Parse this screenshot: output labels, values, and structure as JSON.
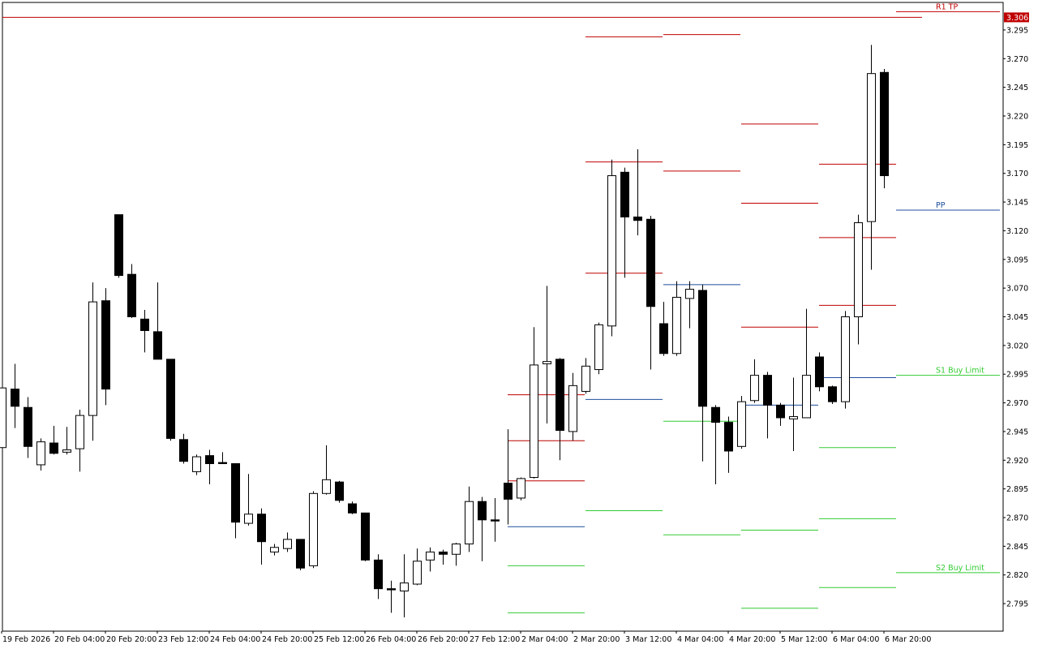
{
  "chart_data": {
    "type": "candlestick",
    "categories": [
      "19 Feb 2026",
      null,
      null,
      null,
      "20 Feb 04:00",
      null,
      null,
      null,
      "20 Feb 20:00",
      null,
      null,
      null,
      "23 Feb 12:00",
      null,
      null,
      null,
      "24 Feb 04:00",
      null,
      null,
      null,
      "24 Feb 20:00",
      null,
      null,
      null,
      "25 Feb 12:00",
      null,
      null,
      null,
      "26 Feb 04:00",
      null,
      null,
      null,
      "26 Feb 20:00",
      null,
      null,
      null,
      "27 Feb 12:00",
      null,
      null,
      null,
      "2 Mar 04:00",
      null,
      null,
      null,
      "2 Mar 20:00",
      null,
      null,
      null,
      "3 Mar 12:00",
      null,
      null,
      null,
      "4 Mar 04:00",
      null,
      null,
      null,
      "4 Mar 20:00",
      null,
      null,
      null,
      "5 Mar 12:00",
      null,
      null,
      null,
      "6 Mar 04:00",
      null,
      null,
      null,
      "6 Mar 20:00"
    ],
    "open": [
      2.931,
      2.982,
      2.966,
      2.916,
      2.935,
      2.927,
      2.93,
      2.959,
      3.059,
      3.134,
      3.082,
      3.043,
      3.032,
      3.008,
      2.938,
      2.91,
      2.924,
      2.918,
      2.917,
      2.865,
      2.873,
      2.84,
      2.843,
      2.851,
      2.828,
      2.891,
      2.901,
      2.882,
      2.874,
      2.833,
      2.808,
      2.806,
      2.812,
      2.833,
      2.84,
      2.838,
      2.847,
      2.884,
      2.868,
      2.9,
      2.887,
      2.905,
      3.004,
      3.008,
      2.945,
      2.98,
      2.999,
      3.037,
      3.171,
      3.132,
      3.13,
      3.039,
      3.013,
      3.061,
      3.068,
      2.966,
      2.953,
      2.932,
      2.972,
      2.994,
      2.968,
      2.956,
      2.957,
      3.01,
      2.984,
      2.971,
      3.045,
      3.128,
      3.258
    ],
    "high": [
      2.983,
      3.004,
      2.975,
      2.939,
      2.95,
      2.949,
      2.964,
      3.075,
      3.07,
      3.134,
      3.091,
      3.051,
      3.075,
      3.008,
      2.943,
      2.925,
      2.929,
      2.927,
      2.917,
      2.908,
      2.878,
      2.847,
      2.857,
      2.851,
      2.893,
      2.933,
      2.902,
      2.884,
      2.874,
      2.838,
      2.815,
      2.838,
      2.843,
      2.844,
      2.842,
      2.848,
      2.897,
      2.888,
      2.887,
      2.947,
      2.905,
      3.036,
      3.072,
      3.009,
      2.996,
      3.009,
      3.04,
      3.182,
      3.175,
      3.191,
      3.133,
      3.058,
      3.076,
      3.076,
      3.073,
      2.968,
      2.958,
      2.976,
      3.008,
      2.997,
      2.97,
      2.992,
      3.052,
      3.014,
      2.985,
      3.05,
      3.134,
      3.282,
      3.261
    ],
    "low": [
      2.931,
      2.948,
      2.922,
      2.911,
      2.925,
      2.925,
      2.91,
      2.937,
      2.968,
      3.079,
      3.044,
      3.014,
      3.008,
      2.937,
      2.917,
      2.907,
      2.899,
      2.917,
      2.852,
      2.863,
      2.829,
      2.837,
      2.84,
      2.824,
      2.826,
      2.89,
      2.883,
      2.873,
      2.832,
      2.799,
      2.787,
      2.783,
      2.811,
      2.823,
      2.829,
      2.828,
      2.84,
      2.832,
      2.849,
      2.864,
      2.885,
      2.904,
      2.952,
      2.92,
      2.937,
      2.978,
      2.995,
      3.028,
      3.079,
      3.116,
      2.999,
      3.011,
      3.011,
      3.035,
      2.919,
      2.899,
      2.909,
      2.93,
      2.97,
      2.939,
      2.95,
      2.928,
      2.957,
      2.98,
      2.969,
      2.965,
      3.021,
      3.086,
      3.157
    ],
    "close": [
      2.983,
      2.967,
      2.932,
      2.936,
      2.926,
      2.929,
      2.959,
      3.058,
      2.982,
      3.081,
      3.045,
      3.033,
      3.008,
      2.939,
      2.919,
      2.923,
      2.917,
      2.917,
      2.866,
      2.873,
      2.849,
      2.844,
      2.851,
      2.826,
      2.891,
      2.903,
      2.885,
      2.874,
      2.833,
      2.808,
      2.807,
      2.813,
      2.832,
      2.84,
      2.838,
      2.847,
      2.884,
      2.868,
      2.867,
      2.886,
      2.904,
      3.003,
      3.006,
      2.946,
      2.985,
      3.002,
      3.038,
      3.168,
      3.132,
      3.129,
      3.054,
      3.013,
      3.062,
      3.069,
      2.967,
      2.953,
      2.928,
      2.971,
      2.994,
      2.968,
      2.957,
      2.958,
      2.994,
      2.984,
      2.971,
      3.045,
      3.127,
      3.257,
      3.168
    ],
    "up_color": "#ffffff",
    "down_color": "#000000",
    "ylim": [
      2.771,
      3.319
    ],
    "yticks": [
      3.295,
      {
        "value": 3.27,
        "label": "3.270"
      },
      3.245,
      {
        "value": 3.22,
        "label": "3.220"
      },
      3.195,
      {
        "value": 3.17,
        "label": "3.170"
      },
      3.145,
      {
        "value": 3.12,
        "label": "3.120"
      },
      3.095,
      {
        "value": 3.07,
        "label": "3.070"
      },
      3.045,
      {
        "value": 3.02,
        "label": "3.020"
      },
      2.995,
      {
        "value": 2.97,
        "label": "2.970"
      },
      2.945,
      {
        "value": 2.92,
        "label": "2.920"
      },
      2.895,
      {
        "value": 2.87,
        "label": "2.870"
      },
      2.845,
      {
        "value": 2.82,
        "label": "2.820"
      },
      2.795
    ],
    "current_price": 3.306,
    "current_price_color": "#c00000",
    "resistance_color": "#c00000",
    "pivot_color": "#1f4e9c",
    "support_color": "#33cc33",
    "pivot_days": [
      {
        "start": 39,
        "end": 45,
        "resistance": [
          2.977,
          2.937,
          2.902
        ],
        "pivot": 2.862,
        "support": [
          2.828,
          2.787
        ]
      },
      {
        "start": 45,
        "end": 51,
        "resistance": [
          3.289,
          3.18,
          3.083
        ],
        "pivot": 2.973,
        "support": [
          2.876
        ]
      },
      {
        "start": 51,
        "end": 57,
        "resistance": [
          3.291,
          3.172
        ],
        "pivot": 3.073,
        "support": [
          2.954,
          2.855
        ]
      },
      {
        "start": 57,
        "end": 63,
        "resistance": [
          3.213,
          3.144,
          3.036
        ],
        "pivot": 2.968,
        "support": [
          2.859,
          2.791
        ]
      },
      {
        "start": 63,
        "end": 69,
        "resistance": [
          3.178,
          3.114,
          3.055
        ],
        "pivot": 2.992,
        "support": [
          2.931,
          2.869,
          2.809
        ]
      }
    ],
    "annotations": [
      {
        "label": "R1 TP",
        "value": 3.311,
        "color": "#c00000"
      },
      {
        "label": "PP",
        "value": 3.138,
        "color": "#1f4e9c"
      },
      {
        "label": "S1 Buy Limit",
        "value": 2.994,
        "color": "#33cc33"
      },
      {
        "label": "S2 Buy Limit",
        "value": 2.822,
        "color": "#33cc33"
      }
    ]
  }
}
